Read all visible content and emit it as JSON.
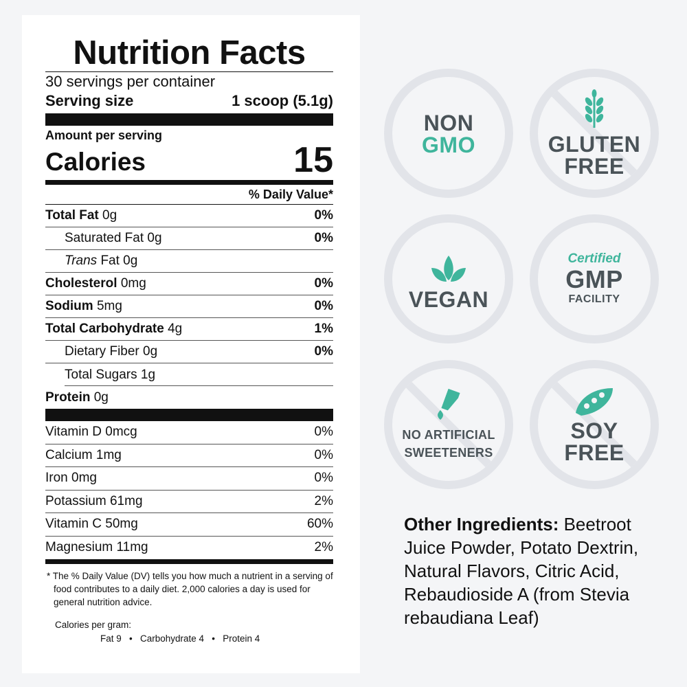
{
  "label": {
    "title": "Nutrition Facts",
    "servings": "30 servings per container",
    "serving_size_label": "Serving size",
    "serving_size_value": "1 scoop (5.1g)",
    "amount_per_serving": "Amount per serving",
    "calories_label": "Calories",
    "calories_value": "15",
    "dv_header": "% Daily Value*",
    "nutrients": [
      {
        "name": "Total Fat",
        "amount": "0g",
        "pct": "0%"
      },
      {
        "name": "Saturated Fat",
        "amount": "0g",
        "pct": "0%"
      },
      {
        "name": "Trans",
        "amount": "Fat 0g",
        "pct": ""
      },
      {
        "name": "Cholesterol",
        "amount": "0mg",
        "pct": "0%"
      },
      {
        "name": "Sodium",
        "amount": "5mg",
        "pct": "0%"
      },
      {
        "name": "Total Carbohydrate",
        "amount": "4g",
        "pct": "1%"
      },
      {
        "name": "Dietary Fiber",
        "amount": "0g",
        "pct": "0%"
      },
      {
        "name": "Total Sugars",
        "amount": "1g",
        "pct": ""
      },
      {
        "name": "Protein",
        "amount": "0g",
        "pct": ""
      }
    ],
    "vitamins": [
      {
        "name": "Vitamin D  0mcg",
        "pct": "0%"
      },
      {
        "name": "Calcium  1mg",
        "pct": "0%"
      },
      {
        "name": "Iron 0mg",
        "pct": "0%"
      },
      {
        "name": "Potassium  61mg",
        "pct": "2%"
      },
      {
        "name": "Vitamin C  50mg",
        "pct": "60%"
      },
      {
        "name": "Magnesium  11mg",
        "pct": "2%"
      }
    ],
    "footnote": "* The % Daily Value (DV) tells you how much a nutrient in a serving of food contributes to a daily diet. 2,000 calories a day is used for general nutrition advice.",
    "calories_per_gram_label": "Calories per gram:",
    "calories_per_gram_values": "Fat 9   •   Carbohydrate 4   •   Protein 4"
  },
  "badges": {
    "non_gmo": {
      "line1": "NON",
      "line2": "GMO"
    },
    "gluten_free": {
      "line1": "GLUTEN",
      "line2": "FREE"
    },
    "vegan": {
      "line1": "VEGAN"
    },
    "gmp": {
      "line1": "Certified",
      "line2": "GMP",
      "line3": "FACILITY"
    },
    "no_artificial": {
      "line1": "NO ARTIFICIAL",
      "line2": "SWEETENERS"
    },
    "soy_free": {
      "line1": "SOY",
      "line2": "FREE"
    }
  },
  "ingredients": {
    "label": "Other Ingredients:",
    "text": " Beetroot Juice Powder, Potato Dextrin, Natural Flavors, Citric Acid, Rebaudioside A (from Stevia rebaudiana Leaf)"
  },
  "colors": {
    "accent": "#3fb59c",
    "badge_text": "#4a5358",
    "badge_ring": "#e2e4e9",
    "background": "#f4f5f7"
  }
}
